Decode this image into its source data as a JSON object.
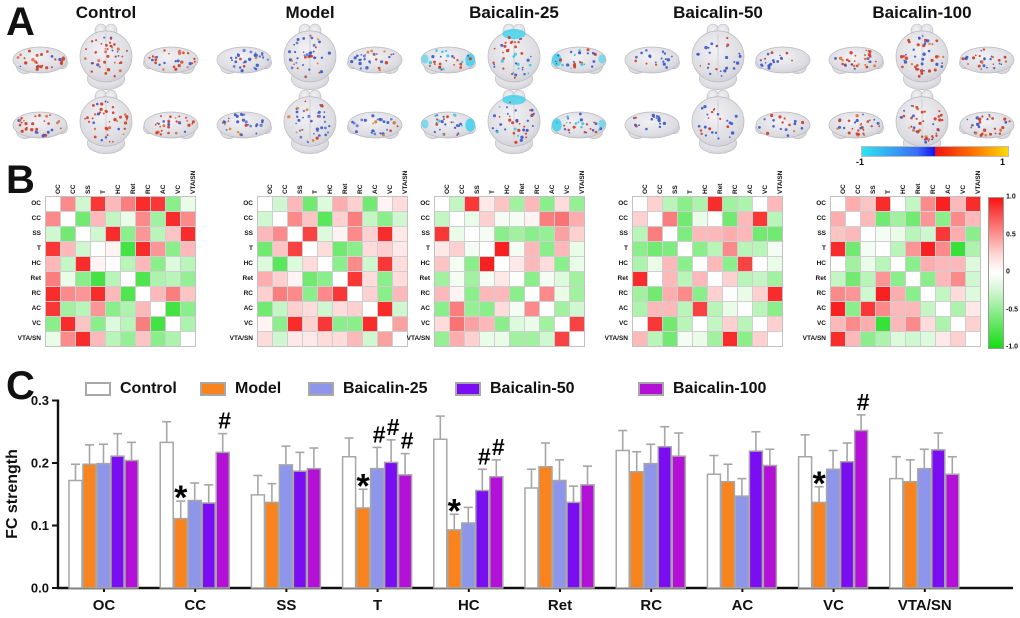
{
  "panels": {
    "a_label": "A",
    "b_label": "B",
    "c_label": "C"
  },
  "groups": [
    {
      "name": "Control",
      "bar_color": "#FFFFFF",
      "dot_colors": [
        "#CF3A22",
        "#E06A40",
        "#3A55C8"
      ],
      "dot_weights": [
        0.6,
        0.2,
        0.2
      ],
      "dot_count": 42
    },
    {
      "name": "Model",
      "bar_color": "#F9831D",
      "dot_colors": [
        "#3A55C8",
        "#5A75D8",
        "#CF3A22",
        "#E08030"
      ],
      "dot_weights": [
        0.5,
        0.25,
        0.15,
        0.1
      ],
      "dot_count": 40
    },
    {
      "name": "Baicalin-25",
      "bar_color": "#8E96EB",
      "dot_colors": [
        "#CF3A22",
        "#3A55C8",
        "#38C8E0"
      ],
      "dot_weights": [
        0.4,
        0.35,
        0.25
      ],
      "dot_count": 38,
      "pole_color": "#3FD2EE"
    },
    {
      "name": "Baicalin-50",
      "bar_color": "#7B0DF2",
      "dot_colors": [
        "#3A55C8",
        "#CF3A22"
      ],
      "dot_weights": [
        0.65,
        0.35
      ],
      "dot_count": 26
    },
    {
      "name": "Baicalin-100",
      "bar_color": "#B411D8",
      "dot_colors": [
        "#CF3A22",
        "#E07030",
        "#3A55C8"
      ],
      "dot_weights": [
        0.5,
        0.2,
        0.3
      ],
      "dot_count": 44
    }
  ],
  "panel_a": {
    "colorbar": {
      "min_label": "-1",
      "max_label": "1"
    }
  },
  "panel_b": {
    "regions": [
      "OC",
      "CC",
      "SS",
      "T",
      "HC",
      "Ret",
      "RC",
      "AC",
      "VC",
      "VTA/SN"
    ],
    "colorbar_ticks": [
      "1.0",
      "0.5",
      "0",
      "-0.5",
      "-1.0"
    ],
    "pos_color": "#F81414",
    "neg_color": "#14DC14",
    "matrices": [
      [
        [
          0,
          0.5,
          -0.2,
          0.85,
          0.3,
          0.55,
          0.9,
          0.85,
          -0.5,
          -0.1
        ],
        [
          0.5,
          0,
          -0.6,
          0.3,
          -0.25,
          -0.1,
          0.5,
          -0.4,
          0.9,
          0.5
        ],
        [
          -0.2,
          -0.6,
          0,
          -0.2,
          0.9,
          -0.5,
          0.45,
          -0.3,
          0.25,
          0.9
        ],
        [
          0.85,
          0.3,
          -0.2,
          0,
          0.05,
          -0.8,
          0.9,
          0.45,
          -0.5,
          0.3
        ],
        [
          0.3,
          -0.25,
          0.9,
          0.05,
          0,
          -0.3,
          0.3,
          -0.5,
          -0.15,
          -0.3
        ],
        [
          0.55,
          -0.1,
          -0.5,
          -0.8,
          -0.3,
          0,
          -0.75,
          -0.35,
          -0.3,
          -0.45
        ],
        [
          0.9,
          0.5,
          0.45,
          0.9,
          0.3,
          -0.75,
          0,
          0.3,
          0.55,
          0.25
        ],
        [
          0.85,
          -0.4,
          -0.3,
          0.45,
          -0.5,
          -0.35,
          0.3,
          0,
          -0.8,
          -0.5
        ],
        [
          -0.5,
          0.9,
          0.25,
          -0.5,
          -0.15,
          -0.3,
          0.55,
          -0.8,
          0,
          -0.35
        ],
        [
          -0.1,
          0.5,
          0.9,
          0.3,
          -0.3,
          -0.45,
          0.25,
          -0.5,
          -0.35,
          0
        ]
      ],
      [
        [
          0,
          -0.2,
          0.3,
          -0.6,
          -0.15,
          0.35,
          0.2,
          -0.6,
          0.05,
          0.15
        ],
        [
          -0.2,
          0,
          0.5,
          0.25,
          -0.7,
          0.2,
          0.55,
          -0.25,
          -0.5,
          -0.2
        ],
        [
          0.3,
          0.5,
          0,
          0.8,
          -0.15,
          0.05,
          0.5,
          0.2,
          0.9,
          0.1
        ],
        [
          -0.6,
          0.25,
          0.8,
          0,
          0.15,
          -0.6,
          -0.5,
          0.15,
          0.2,
          0.1
        ],
        [
          -0.15,
          -0.7,
          -0.15,
          0.15,
          0,
          -0.5,
          0.5,
          -0.2,
          0.85,
          0.15
        ],
        [
          0.35,
          0.2,
          0.05,
          -0.6,
          -0.5,
          0,
          0.85,
          0.15,
          -0.5,
          0.15
        ],
        [
          0.2,
          0.55,
          0.5,
          -0.5,
          0.5,
          0.85,
          0,
          0.2,
          -0.5,
          0.3
        ],
        [
          -0.6,
          -0.25,
          0.2,
          0.15,
          -0.2,
          0.15,
          0.2,
          0,
          0.9,
          -0.2
        ],
        [
          0.05,
          -0.5,
          0.9,
          0.2,
          0.85,
          -0.5,
          -0.5,
          0.9,
          0,
          0.4
        ],
        [
          0.15,
          -0.2,
          0.1,
          0.1,
          0.15,
          0.15,
          0.3,
          -0.2,
          0.4,
          0
        ]
      ],
      [
        [
          0,
          -0.25,
          0.85,
          0.1,
          0.25,
          -0.4,
          0.3,
          -0.5,
          0.15,
          -0.45
        ],
        [
          -0.25,
          0,
          -0.1,
          0.2,
          -0.05,
          -0.05,
          0.05,
          0.55,
          0.6,
          0.35
        ],
        [
          0.85,
          -0.1,
          0,
          -0.05,
          -0.5,
          -0.4,
          -0.5,
          -0.45,
          0.4,
          0.2
        ],
        [
          0.1,
          0.2,
          -0.05,
          0,
          0.95,
          -0.05,
          0.3,
          -0.5,
          0.3,
          -0.1
        ],
        [
          0.25,
          -0.05,
          -0.5,
          0.95,
          0,
          0.1,
          0.3,
          0.15,
          -0.5,
          -0.1
        ],
        [
          -0.4,
          -0.05,
          -0.4,
          -0.05,
          0.1,
          0,
          -0.5,
          -0.05,
          -0.15,
          -0.4
        ],
        [
          0.3,
          0.05,
          -0.5,
          0.3,
          0.3,
          -0.5,
          0,
          0.5,
          -0.1,
          -0.4
        ],
        [
          -0.5,
          0.55,
          -0.45,
          -0.5,
          0.15,
          -0.05,
          0.5,
          0,
          -0.4,
          -0.2
        ],
        [
          0.15,
          0.6,
          0.4,
          0.3,
          -0.5,
          -0.15,
          -0.1,
          -0.4,
          0,
          0.8
        ],
        [
          -0.45,
          0.35,
          0.2,
          -0.1,
          -0.1,
          -0.4,
          -0.4,
          -0.2,
          0.8,
          0
        ]
      ],
      [
        [
          0,
          0.2,
          -0.3,
          -0.5,
          -0.35,
          0.9,
          -0.4,
          -0.35,
          0,
          0.3
        ],
        [
          0.2,
          0,
          0.55,
          -0.6,
          -0.1,
          0,
          -0.6,
          0.3,
          0.85,
          -0.3
        ],
        [
          -0.3,
          0.55,
          0,
          -0.55,
          0.3,
          0.3,
          0.35,
          0.3,
          -0.6,
          -0.6
        ],
        [
          -0.5,
          -0.6,
          -0.55,
          0,
          -0.5,
          -0.3,
          0.5,
          -0.3,
          -0.3,
          -0.05
        ],
        [
          -0.35,
          -0.1,
          0.3,
          -0.5,
          0,
          0.3,
          -0.5,
          0.8,
          0,
          -0.1
        ],
        [
          0.9,
          0,
          0.3,
          -0.3,
          0.3,
          0,
          0.2,
          -0.3,
          -0.25,
          -0.4
        ],
        [
          -0.4,
          -0.6,
          0.35,
          0.5,
          -0.5,
          0.2,
          0,
          -0.1,
          0.2,
          0.9
        ],
        [
          -0.35,
          0.3,
          0.3,
          -0.3,
          0.8,
          -0.3,
          -0.1,
          0,
          -0.3,
          -0.5
        ],
        [
          0,
          0.85,
          -0.6,
          -0.3,
          0,
          -0.25,
          0.2,
          -0.3,
          0,
          0.2
        ],
        [
          0.3,
          -0.3,
          -0.6,
          -0.05,
          -0.1,
          -0.4,
          0.9,
          -0.5,
          0.2,
          0
        ]
      ],
      [
        [
          0,
          0.35,
          0.25,
          0.9,
          0,
          -0.25,
          0.5,
          0.95,
          0.3,
          0.9
        ],
        [
          0.35,
          0,
          0.3,
          -0.6,
          -0.4,
          -0.6,
          0.45,
          -0.5,
          0.5,
          0.3
        ],
        [
          0.25,
          0.3,
          0,
          -0.05,
          -0.1,
          -0.3,
          -0.2,
          0.85,
          0.35,
          -0.5
        ],
        [
          0.9,
          -0.6,
          -0.05,
          0,
          -0.3,
          0.45,
          0.95,
          0.5,
          -0.85,
          -0.35
        ],
        [
          0,
          -0.4,
          -0.1,
          -0.3,
          0,
          -0.5,
          0.35,
          0.3,
          0.3,
          -0.15
        ],
        [
          -0.25,
          -0.6,
          -0.3,
          0.45,
          -0.5,
          0,
          -0.5,
          0.3,
          0.5,
          -0.2
        ],
        [
          0.5,
          0.45,
          -0.2,
          0.95,
          0.35,
          -0.5,
          0,
          -0.25,
          0.15,
          -0.15
        ],
        [
          0.95,
          -0.5,
          0.85,
          0.5,
          0.3,
          0.3,
          -0.25,
          0,
          -0.35,
          0.1
        ],
        [
          0.3,
          0.5,
          0.35,
          -0.85,
          0.3,
          0.5,
          0.15,
          -0.35,
          0,
          0.2
        ],
        [
          0.9,
          0.3,
          -0.5,
          -0.35,
          -0.15,
          -0.2,
          -0.15,
          0.1,
          0.2,
          0
        ]
      ]
    ]
  },
  "chart_data": {
    "type": "bar",
    "ylabel": "FC strength",
    "ylim": [
      0,
      0.3
    ],
    "yticks": [
      0,
      0.1,
      0.2,
      0.3
    ],
    "grid": false,
    "legend_position": "top",
    "categories": [
      "OC",
      "CC",
      "SS",
      "T",
      "HC",
      "Ret",
      "RC",
      "AC",
      "VC",
      "VTA/SN"
    ],
    "series": [
      {
        "name": "Control",
        "color": "#FFFFFF",
        "values": [
          0.172,
          0.233,
          0.149,
          0.21,
          0.238,
          0.16,
          0.22,
          0.182,
          0.21,
          0.175
        ],
        "errors": [
          0.026,
          0.033,
          0.031,
          0.03,
          0.037,
          0.03,
          0.032,
          0.03,
          0.035,
          0.035
        ]
      },
      {
        "name": "Model",
        "color": "#F9831D",
        "values": [
          0.198,
          0.111,
          0.137,
          0.128,
          0.093,
          0.194,
          0.186,
          0.17,
          0.137,
          0.17
        ],
        "errors": [
          0.031,
          0.028,
          0.03,
          0.03,
          0.025,
          0.038,
          0.032,
          0.028,
          0.025,
          0.035
        ]
      },
      {
        "name": "Baicalin-25",
        "color": "#8E96EB",
        "values": [
          0.199,
          0.14,
          0.197,
          0.191,
          0.104,
          0.172,
          0.199,
          0.147,
          0.19,
          0.191
        ],
        "errors": [
          0.031,
          0.028,
          0.03,
          0.034,
          0.025,
          0.033,
          0.031,
          0.028,
          0.03,
          0.031
        ]
      },
      {
        "name": "Baicalin-50",
        "color": "#7B0DF2",
        "values": [
          0.211,
          0.136,
          0.187,
          0.201,
          0.156,
          0.137,
          0.226,
          0.219,
          0.202,
          0.221
        ],
        "errors": [
          0.036,
          0.029,
          0.03,
          0.036,
          0.034,
          0.026,
          0.032,
          0.031,
          0.03,
          0.027
        ]
      },
      {
        "name": "Baicalin-100",
        "color": "#B411D8",
        "values": [
          0.204,
          0.217,
          0.191,
          0.181,
          0.178,
          0.165,
          0.211,
          0.196,
          0.252,
          0.182
        ],
        "errors": [
          0.029,
          0.03,
          0.033,
          0.034,
          0.027,
          0.03,
          0.037,
          0.026,
          0.025,
          0.028
        ]
      }
    ],
    "annotations": {
      "star": [
        [
          "CC",
          "Model"
        ],
        [
          "T",
          "Model"
        ],
        [
          "HC",
          "Model"
        ],
        [
          "VC",
          "Model"
        ]
      ],
      "hash": [
        [
          "CC",
          "Baicalin-100"
        ],
        [
          "T",
          "Baicalin-25"
        ],
        [
          "T",
          "Baicalin-50"
        ],
        [
          "T",
          "Baicalin-100"
        ],
        [
          "HC",
          "Baicalin-50"
        ],
        [
          "HC",
          "Baicalin-100"
        ],
        [
          "VC",
          "Baicalin-100"
        ]
      ]
    }
  }
}
